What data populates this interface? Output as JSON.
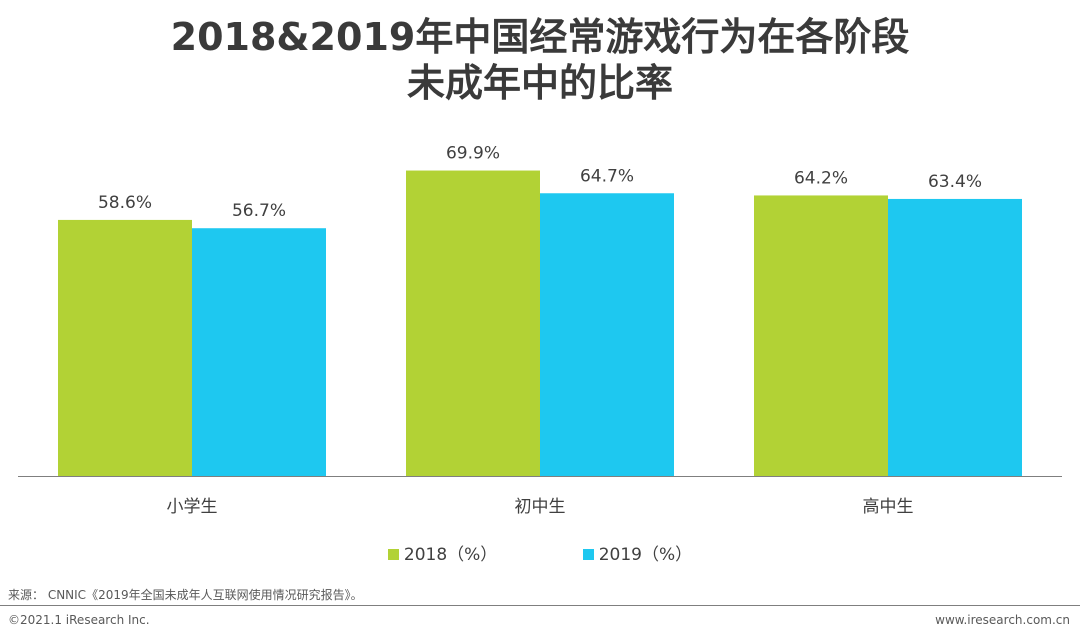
{
  "chart_data": {
    "type": "bar",
    "title_line1": "2018&2019年中国经常游戏行为在各阶段",
    "title_line2": "未成年中的比率",
    "categories": [
      "小学生",
      "初中生",
      "高中生"
    ],
    "series": [
      {
        "name": "2018（%）",
        "color": "#b2d235",
        "values": [
          58.6,
          69.9,
          64.2
        ],
        "labels": [
          "58.6%",
          "69.9%",
          "64.2%"
        ]
      },
      {
        "name": "2019（%）",
        "color": "#1ec8f0",
        "values": [
          56.7,
          64.7,
          63.4
        ],
        "labels": [
          "56.7%",
          "64.7%",
          "63.4%"
        ]
      }
    ],
    "ylim": [
      0,
      80
    ],
    "grid": false,
    "legend_position": "bottom"
  },
  "footer": {
    "source": "来源： CNNIC《2019年全国未成年人互联网使用情况研究报告》。",
    "copyright": "©2021.1 iResearch Inc.",
    "website": "www.iresearch.com.cn"
  }
}
